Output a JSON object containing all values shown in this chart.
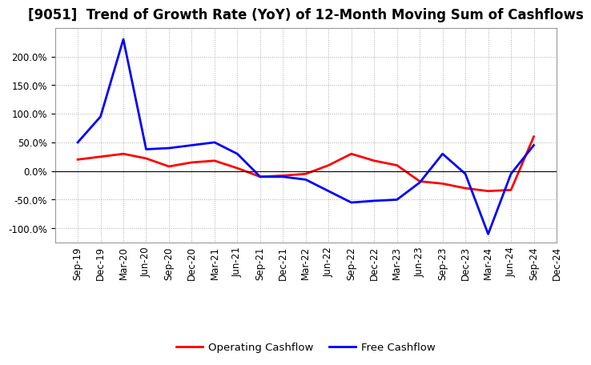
{
  "title": "[9051]  Trend of Growth Rate (YoY) of 12-Month Moving Sum of Cashflows",
  "x_labels": [
    "Sep-19",
    "Dec-19",
    "Mar-20",
    "Jun-20",
    "Sep-20",
    "Dec-20",
    "Mar-21",
    "Jun-21",
    "Sep-21",
    "Dec-21",
    "Mar-22",
    "Jun-22",
    "Sep-22",
    "Dec-22",
    "Mar-23",
    "Jun-23",
    "Sep-23",
    "Dec-23",
    "Mar-24",
    "Jun-24",
    "Sep-24",
    "Dec-24"
  ],
  "operating_cashflow": [
    20,
    25,
    30,
    22,
    8,
    15,
    18,
    5,
    -10,
    -8,
    -5,
    10,
    30,
    18,
    10,
    -18,
    -22,
    -30,
    -35,
    -33,
    60,
    null
  ],
  "free_cashflow": [
    50,
    95,
    230,
    38,
    40,
    45,
    50,
    30,
    -10,
    -10,
    -15,
    -35,
    -55,
    -52,
    -50,
    -20,
    30,
    -5,
    -110,
    -5,
    45,
    null
  ],
  "operating_color": "#ff0000",
  "free_color": "#0000ff",
  "ylim": [
    -125,
    250
  ],
  "yticks": [
    -100,
    -50,
    0,
    50,
    100,
    150,
    200
  ],
  "background_color": "#ffffff",
  "grid_color": "#888888",
  "legend_labels": [
    "Operating Cashflow",
    "Free Cashflow"
  ],
  "title_fontsize": 12,
  "axis_fontsize": 8.5,
  "line_width": 2.0
}
